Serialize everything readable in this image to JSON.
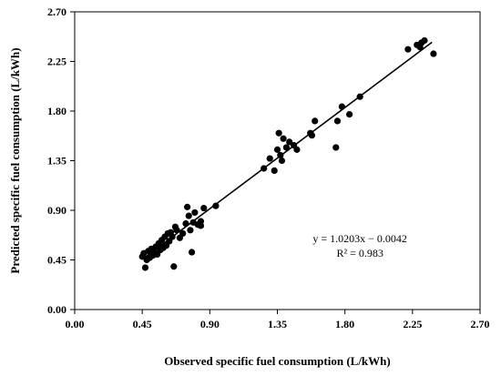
{
  "chart_data": {
    "type": "scatter",
    "title": "",
    "xlabel": "Observed specific fuel consumption (L/kWh)",
    "ylabel": "Predicted specific fuel consumption (L/kWh)",
    "xlim": [
      0,
      2.7
    ],
    "ylim": [
      0,
      2.7
    ],
    "x_ticks": [
      "0.00",
      "0.45",
      "0.90",
      "1.35",
      "1.80",
      "2.25",
      "2.70"
    ],
    "y_ticks": [
      "0.00",
      "0.45",
      "0.90",
      "1.35",
      "1.80",
      "2.25",
      "2.70"
    ],
    "grid": false,
    "legend": "none",
    "marker_color": "#000000",
    "points": [
      {
        "x": 0.45,
        "y": 0.48
      },
      {
        "x": 0.46,
        "y": 0.51
      },
      {
        "x": 0.47,
        "y": 0.38
      },
      {
        "x": 0.48,
        "y": 0.45
      },
      {
        "x": 0.49,
        "y": 0.53
      },
      {
        "x": 0.5,
        "y": 0.47
      },
      {
        "x": 0.51,
        "y": 0.55
      },
      {
        "x": 0.52,
        "y": 0.49
      },
      {
        "x": 0.53,
        "y": 0.52
      },
      {
        "x": 0.54,
        "y": 0.57
      },
      {
        "x": 0.55,
        "y": 0.5
      },
      {
        "x": 0.56,
        "y": 0.6
      },
      {
        "x": 0.57,
        "y": 0.54
      },
      {
        "x": 0.58,
        "y": 0.63
      },
      {
        "x": 0.59,
        "y": 0.56
      },
      {
        "x": 0.6,
        "y": 0.66
      },
      {
        "x": 0.61,
        "y": 0.58
      },
      {
        "x": 0.62,
        "y": 0.69
      },
      {
        "x": 0.63,
        "y": 0.62
      },
      {
        "x": 0.64,
        "y": 0.7
      },
      {
        "x": 0.65,
        "y": 0.66
      },
      {
        "x": 0.66,
        "y": 0.39
      },
      {
        "x": 0.67,
        "y": 0.75
      },
      {
        "x": 0.68,
        "y": 0.72
      },
      {
        "x": 0.7,
        "y": 0.65
      },
      {
        "x": 0.72,
        "y": 0.69
      },
      {
        "x": 0.74,
        "y": 0.78
      },
      {
        "x": 0.75,
        "y": 0.93
      },
      {
        "x": 0.76,
        "y": 0.85
      },
      {
        "x": 0.77,
        "y": 0.72
      },
      {
        "x": 0.78,
        "y": 0.52
      },
      {
        "x": 0.79,
        "y": 0.79
      },
      {
        "x": 0.8,
        "y": 0.88
      },
      {
        "x": 0.82,
        "y": 0.77
      },
      {
        "x": 0.84,
        "y": 0.8
      },
      {
        "x": 0.86,
        "y": 0.92
      },
      {
        "x": 0.84,
        "y": 0.76
      },
      {
        "x": 0.94,
        "y": 0.94
      },
      {
        "x": 1.26,
        "y": 1.28
      },
      {
        "x": 1.3,
        "y": 1.37
      },
      {
        "x": 1.33,
        "y": 1.26
      },
      {
        "x": 1.35,
        "y": 1.45
      },
      {
        "x": 1.36,
        "y": 1.6
      },
      {
        "x": 1.37,
        "y": 1.4
      },
      {
        "x": 1.38,
        "y": 1.35
      },
      {
        "x": 1.39,
        "y": 1.55
      },
      {
        "x": 1.41,
        "y": 1.47
      },
      {
        "x": 1.43,
        "y": 1.52
      },
      {
        "x": 1.46,
        "y": 1.49
      },
      {
        "x": 1.48,
        "y": 1.45
      },
      {
        "x": 1.57,
        "y": 1.6
      },
      {
        "x": 1.58,
        "y": 1.58
      },
      {
        "x": 1.6,
        "y": 1.71
      },
      {
        "x": 1.74,
        "y": 1.47
      },
      {
        "x": 1.75,
        "y": 1.71
      },
      {
        "x": 1.78,
        "y": 1.84
      },
      {
        "x": 1.83,
        "y": 1.77
      },
      {
        "x": 1.9,
        "y": 1.93
      },
      {
        "x": 2.22,
        "y": 2.36
      },
      {
        "x": 2.28,
        "y": 2.4
      },
      {
        "x": 2.3,
        "y": 2.38
      },
      {
        "x": 2.31,
        "y": 2.42
      },
      {
        "x": 2.33,
        "y": 2.44
      },
      {
        "x": 2.39,
        "y": 2.32
      }
    ],
    "trendline": {
      "x_range": [
        0.45,
        2.38
      ],
      "slope": 1.0203,
      "intercept": -0.0042
    },
    "annotations": {
      "equation": "y = 1.0203x − 0.0042",
      "r_squared": "R² = 0.983",
      "equation_at": {
        "x": 1.9,
        "y": 0.61
      },
      "r_squared_at": {
        "x": 1.9,
        "y": 0.48
      }
    }
  }
}
